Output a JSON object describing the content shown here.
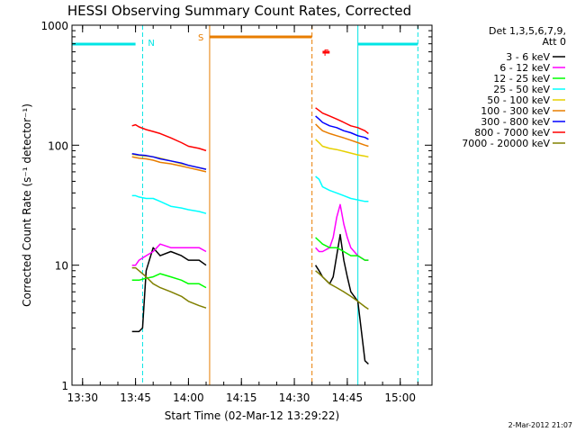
{
  "chart_data": {
    "type": "line",
    "title": "HESSI Observing Summary Count Rates, Corrected",
    "xlabel": "Start Time (02-Mar-12 13:29:22)",
    "ylabel": "Corrected Count Rate (s⁻¹ detector⁻¹)",
    "ylog": true,
    "ylim": [
      1,
      1000
    ],
    "xlim": [
      "13:27",
      "15:09"
    ],
    "xticks": [
      "13:30",
      "13:45",
      "14:00",
      "14:15",
      "14:30",
      "14:45",
      "15:00"
    ],
    "xtick_minutes": [
      30,
      45,
      60,
      75,
      90,
      105,
      120
    ],
    "yticks": [
      "1",
      "10",
      "100",
      "1000"
    ],
    "yticks_values": [
      1,
      10,
      100,
      1000
    ],
    "legend_header": [
      "Det 1,3,5,6,7,9,",
      "Att 0"
    ],
    "legend_placement": "right",
    "timestamp": "2-Mar-2012 21:07",
    "flags": {
      "night": {
        "label": "N",
        "color": "#00e5e5",
        "bars": [
          [
            "13:27",
            "13:45"
          ],
          [
            "14:48",
            "15:05"
          ]
        ],
        "markers": [
          "13:27",
          "13:47",
          "14:48",
          "15:05"
        ]
      },
      "saa": {
        "label": "S",
        "color": "#e87d00",
        "bars": [
          [
            "14:06",
            "14:35"
          ]
        ],
        "markers": [
          "14:06",
          "14:35"
        ]
      },
      "flare": {
        "label": "F",
        "color": "#ff0000",
        "bars": [
          [
            "14:38",
            "14:40"
          ]
        ]
      }
    },
    "series": [
      {
        "name": "3 - 6 keV",
        "color": "#000000",
        "segments": [
          {
            "t": [
              "13:44",
              "13:45",
              "13:46",
              "13:47",
              "13:48",
              "13:50",
              "13:52",
              "13:55",
              "13:58",
              "14:00",
              "14:03",
              "14:05"
            ],
            "y": [
              2.8,
              2.8,
              2.8,
              3,
              9,
              14,
              12,
              13,
              12,
              11,
              11,
              10
            ]
          },
          {
            "t": [
              "14:36",
              "14:37",
              "14:38",
              "14:40",
              "14:41",
              "14:42",
              "14:43",
              "14:44",
              "14:45",
              "14:46",
              "14:48",
              "14:50",
              "14:51"
            ],
            "y": [
              10,
              9,
              8,
              7,
              8,
              12,
              18,
              11,
              8,
              6,
              5,
              1.6,
              1.5
            ]
          }
        ]
      },
      {
        "name": "6 - 12 keV",
        "color": "#ff00ff",
        "segments": [
          {
            "t": [
              "13:44",
              "13:45",
              "13:46",
              "13:48",
              "13:50",
              "13:52",
              "13:55",
              "13:58",
              "14:00",
              "14:03",
              "14:05"
            ],
            "y": [
              10,
              10,
              11,
              12,
              13,
              15,
              14,
              14,
              14,
              14,
              13
            ]
          },
          {
            "t": [
              "14:36",
              "14:37",
              "14:38",
              "14:40",
              "14:41",
              "14:42",
              "14:43",
              "14:44",
              "14:45",
              "14:46",
              "14:48",
              "14:50",
              "14:51"
            ],
            "y": [
              14,
              13,
              13,
              14,
              17,
              25,
              32,
              22,
              17,
              14,
              12,
              11,
              11
            ]
          }
        ]
      },
      {
        "name": "12 - 25 keV",
        "color": "#00ff00",
        "segments": [
          {
            "t": [
              "13:44",
              "13:45",
              "13:46",
              "13:48",
              "13:50",
              "13:52",
              "13:55",
              "13:58",
              "14:00",
              "14:03",
              "14:05"
            ],
            "y": [
              7.5,
              7.5,
              7.5,
              7.8,
              8,
              8.5,
              8,
              7.5,
              7,
              7,
              6.5
            ]
          },
          {
            "t": [
              "14:36",
              "14:37",
              "14:38",
              "14:40",
              "14:42",
              "14:44",
              "14:46",
              "14:48",
              "14:50",
              "14:51"
            ],
            "y": [
              17,
              16,
              15,
              14,
              14,
              13,
              12,
              12,
              11,
              11
            ]
          }
        ]
      },
      {
        "name": "25 - 50 keV",
        "color": "#00ffff",
        "segments": [
          {
            "t": [
              "13:44",
              "13:45",
              "13:46",
              "13:48",
              "13:50",
              "13:52",
              "13:55",
              "13:58",
              "14:00",
              "14:03",
              "14:05"
            ],
            "y": [
              38,
              38,
              37,
              36,
              36,
              34,
              31,
              30,
              29,
              28,
              27
            ]
          },
          {
            "t": [
              "14:36",
              "14:37",
              "14:38",
              "14:40",
              "14:42",
              "14:44",
              "14:46",
              "14:48",
              "14:50",
              "14:51"
            ],
            "y": [
              55,
              52,
              45,
              42,
              40,
              38,
              36,
              35,
              34,
              34
            ]
          }
        ]
      },
      {
        "name": "50 - 100 keV",
        "color": "#e6d000",
        "segments": [
          {
            "t": [
              "13:44",
              "13:45",
              "13:46",
              "13:48",
              "13:50",
              "13:52",
              "13:55",
              "13:58",
              "14:00",
              "14:03",
              "14:05"
            ],
            "y": [
              84,
              83,
              82,
              81,
              80,
              78,
              74,
              70,
              68,
              65,
              63
            ]
          },
          {
            "t": [
              "14:36",
              "14:37",
              "14:38",
              "14:40",
              "14:42",
              "14:44",
              "14:46",
              "14:48",
              "14:50",
              "14:51"
            ],
            "y": [
              112,
              105,
              98,
              94,
              92,
              89,
              86,
              83,
              81,
              80
            ]
          }
        ]
      },
      {
        "name": "100 - 300 keV",
        "color": "#e87d00",
        "segments": [
          {
            "t": [
              "13:44",
              "13:45",
              "13:46",
              "13:48",
              "13:50",
              "13:52",
              "13:55",
              "13:58",
              "14:00",
              "14:03",
              "14:05"
            ],
            "y": [
              80,
              79,
              78,
              77,
              75,
              72,
              70,
              67,
              65,
              62,
              60
            ]
          },
          {
            "t": [
              "14:36",
              "14:37",
              "14:38",
              "14:40",
              "14:42",
              "14:44",
              "14:46",
              "14:48",
              "14:50",
              "14:51"
            ],
            "y": [
              150,
              140,
              132,
              125,
              120,
              115,
              110,
              105,
              100,
              98
            ]
          }
        ]
      },
      {
        "name": "300 - 800 keV",
        "color": "#0000ff",
        "segments": [
          {
            "t": [
              "13:44",
              "13:45",
              "13:46",
              "13:48",
              "13:50",
              "13:52",
              "13:55",
              "13:58",
              "14:00",
              "14:03",
              "14:05"
            ],
            "y": [
              85,
              84,
              83,
              82,
              80,
              77,
              74,
              71,
              68,
              65,
              63
            ]
          },
          {
            "t": [
              "14:36",
              "14:37",
              "14:38",
              "14:40",
              "14:42",
              "14:44",
              "14:46",
              "14:48",
              "14:50",
              "14:51"
            ],
            "y": [
              175,
              165,
              155,
              145,
              140,
              132,
              127,
              120,
              116,
              112
            ]
          }
        ]
      },
      {
        "name": "800 - 7000 keV",
        "color": "#ff0000",
        "segments": [
          {
            "t": [
              "13:44",
              "13:45",
              "13:46",
              "13:48",
              "13:50",
              "13:52",
              "13:55",
              "13:58",
              "14:00",
              "14:03",
              "14:05"
            ],
            "y": [
              145,
              148,
              142,
              135,
              130,
              125,
              115,
              105,
              98,
              94,
              90
            ]
          },
          {
            "t": [
              "14:36",
              "14:37",
              "14:38",
              "14:40",
              "14:42",
              "14:44",
              "14:46",
              "14:48",
              "14:50",
              "14:51"
            ],
            "y": [
              205,
              195,
              185,
              175,
              165,
              155,
              145,
              140,
              132,
              125
            ]
          }
        ]
      },
      {
        "name": "7000 - 20000 keV",
        "color": "#808000",
        "segments": [
          {
            "t": [
              "13:44",
              "13:45",
              "13:46",
              "13:48",
              "13:50",
              "13:52",
              "13:55",
              "13:58",
              "14:00",
              "14:03",
              "14:05"
            ],
            "y": [
              9.5,
              9.5,
              9,
              8,
              7,
              6.5,
              6,
              5.5,
              5,
              4.6,
              4.4
            ]
          },
          {
            "t": [
              "14:36",
              "14:37",
              "14:38",
              "14:40",
              "14:42",
              "14:44",
              "14:46",
              "14:48",
              "14:50",
              "14:51"
            ],
            "y": [
              9,
              8.5,
              8,
              7,
              6.5,
              6,
              5.5,
              5,
              4.5,
              4.3
            ]
          }
        ]
      }
    ]
  }
}
